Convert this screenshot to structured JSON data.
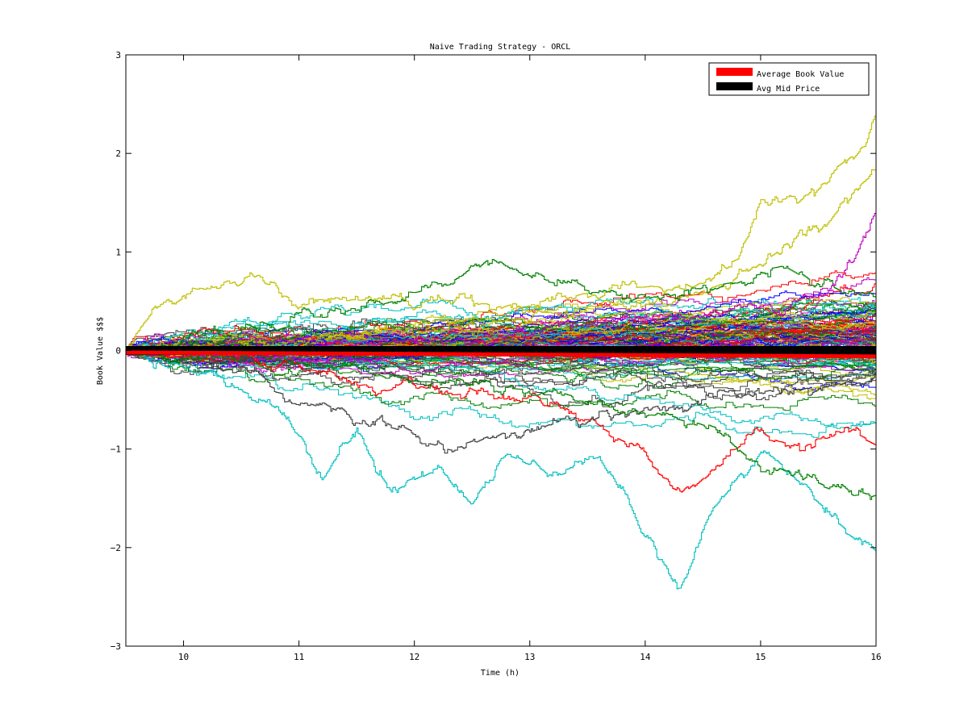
{
  "chart_data": {
    "type": "line",
    "title": "Naive Trading Strategy - ORCL",
    "xlabel": "Time (h)",
    "ylabel": "Book Value $$$",
    "xlim": [
      9.5,
      16
    ],
    "ylim": [
      -3,
      3
    ],
    "xticks": [
      "10",
      "11",
      "12",
      "13",
      "14",
      "15",
      "16"
    ],
    "yticks": [
      "3",
      "2",
      "1",
      "0",
      "-1",
      "-2",
      "-3"
    ],
    "grid": false,
    "legend_position": "top-right",
    "legend": [
      {
        "name": "Average Book Value",
        "color": "#ff0000"
      },
      {
        "name": "Avg Mid Price",
        "color": "#000000"
      }
    ],
    "palette": [
      "#0000ff",
      "#008000",
      "#ff0000",
      "#00bfbf",
      "#bf00bf",
      "#bfbf00",
      "#404040"
    ],
    "simulated_paths": {
      "count": 140,
      "final_value_range": [
        -2.1,
        2.4
      ]
    },
    "highlighted_paths": [
      {
        "color": "#bfbf00",
        "x": [
          9.5,
          9.75,
          10.0,
          10.3,
          10.65,
          11.0,
          12.0,
          13.0,
          13.5,
          14.0,
          14.4,
          14.8,
          15.0,
          15.3,
          15.6,
          15.9,
          16.0
        ],
        "y": [
          0,
          0.4,
          0.55,
          0.62,
          0.78,
          0.52,
          0.5,
          0.5,
          0.6,
          0.65,
          0.6,
          0.9,
          1.5,
          1.55,
          1.75,
          2.1,
          2.4
        ]
      },
      {
        "color": "#bfbf00",
        "x": [
          9.5,
          11.0,
          12.0,
          13.0,
          14.0,
          14.6,
          15.0,
          15.4,
          15.8,
          16.0
        ],
        "y": [
          0,
          0.1,
          0.2,
          0.35,
          0.45,
          0.6,
          0.9,
          1.2,
          1.6,
          1.85
        ]
      },
      {
        "color": "#008000",
        "x": [
          9.5,
          10.5,
          11.5,
          12.0,
          12.4,
          12.65,
          12.9,
          13.3,
          13.8,
          14.3,
          14.8,
          15.2,
          15.6,
          16.0
        ],
        "y": [
          0,
          0.15,
          0.4,
          0.55,
          0.75,
          0.95,
          0.75,
          0.65,
          0.55,
          0.6,
          0.7,
          0.85,
          0.6,
          0.5
        ]
      },
      {
        "color": "#bf00bf",
        "x": [
          9.5,
          11.0,
          12.0,
          13.0,
          14.0,
          14.8,
          15.4,
          15.8,
          16.0
        ],
        "y": [
          0,
          0.1,
          0.1,
          0.2,
          0.3,
          0.4,
          0.5,
          0.9,
          1.4
        ]
      },
      {
        "color": "#00bfbf",
        "x": [
          9.5,
          10.0,
          10.5,
          10.8,
          11.0,
          11.2,
          11.5,
          11.8,
          12.2,
          12.5,
          12.8,
          13.2,
          13.6,
          14.0,
          14.3,
          14.6,
          15.0,
          15.4,
          16.0
        ],
        "y": [
          0,
          -0.2,
          -0.35,
          -0.6,
          -0.9,
          -1.3,
          -0.8,
          -1.4,
          -1.2,
          -1.6,
          -1.0,
          -1.3,
          -1.1,
          -1.9,
          -2.45,
          -1.6,
          -1.0,
          -1.4,
          -2.1
        ]
      },
      {
        "color": "#ff0000",
        "x": [
          9.5,
          11.0,
          12.0,
          13.0,
          13.5,
          14.0,
          14.3,
          14.6,
          15.0,
          15.4,
          15.8,
          16.0
        ],
        "y": [
          0,
          -0.2,
          -0.4,
          -0.5,
          -0.7,
          -1.05,
          -1.4,
          -1.2,
          -0.9,
          -1.0,
          -0.8,
          -0.95
        ]
      },
      {
        "color": "#404040",
        "x": [
          9.5,
          10.5,
          11.0,
          11.5,
          12.0,
          12.3,
          12.8,
          13.2,
          13.8,
          14.4,
          15.0,
          16.0
        ],
        "y": [
          0,
          -0.2,
          -0.5,
          -0.7,
          -0.85,
          -1.0,
          -0.8,
          -0.7,
          -0.6,
          -0.5,
          -0.4,
          -0.3
        ]
      },
      {
        "color": "#008000",
        "x": [
          9.5,
          11.0,
          12.0,
          13.0,
          14.0,
          14.6,
          15.0,
          15.4,
          15.8,
          16.0
        ],
        "y": [
          0,
          -0.1,
          -0.3,
          -0.4,
          -0.6,
          -0.8,
          -1.2,
          -1.3,
          -1.5,
          -1.45
        ]
      }
    ],
    "average_book_value": {
      "x": [
        9.5,
        16.0
      ],
      "y": [
        -0.02,
        -0.06
      ]
    },
    "avg_mid_price": {
      "x": [
        9.5,
        16.0
      ],
      "y": [
        0.0,
        0.0
      ]
    }
  }
}
